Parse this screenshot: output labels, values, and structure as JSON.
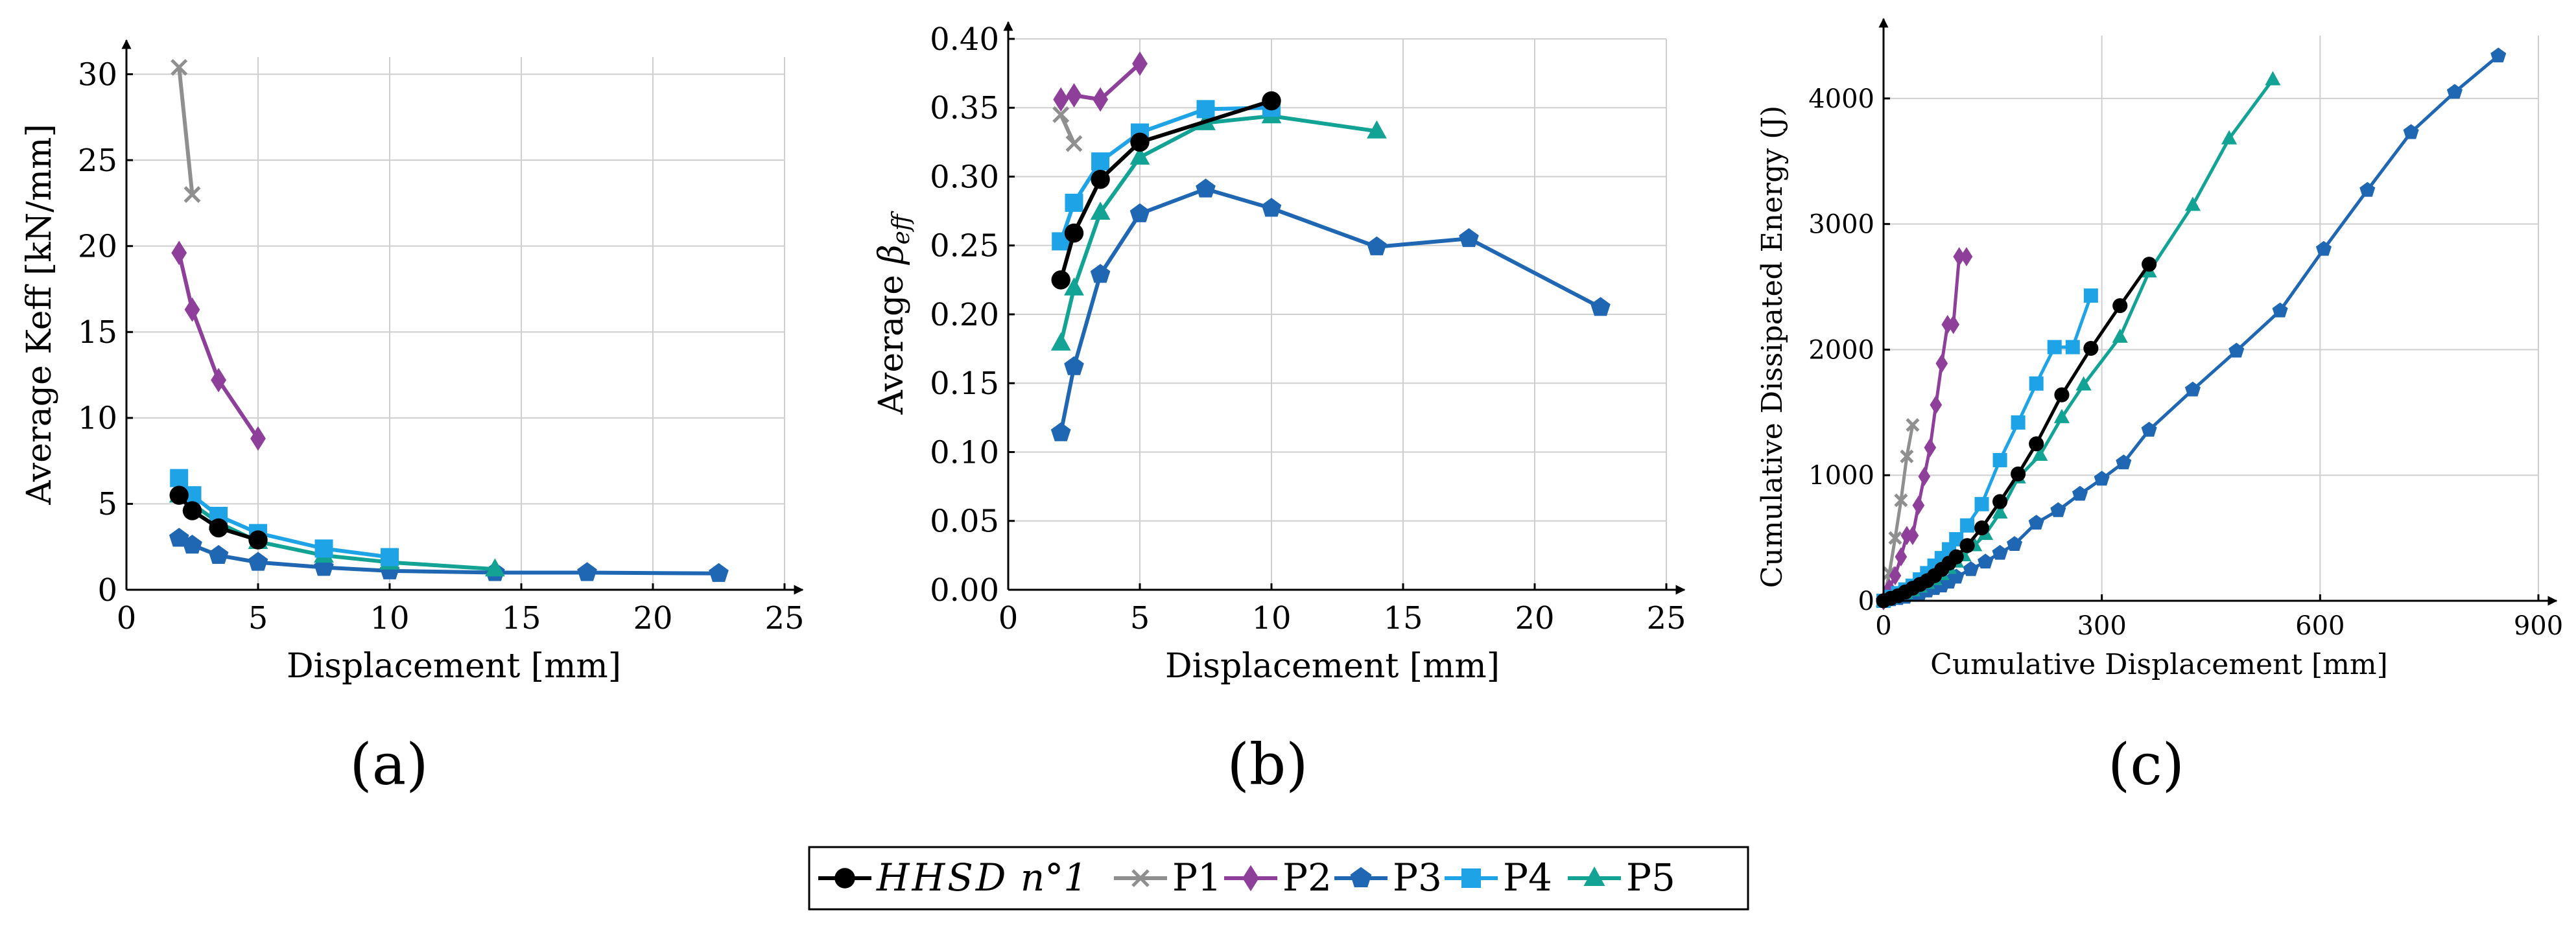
{
  "legend": {
    "entries": [
      {
        "key": "HHSD",
        "name": "HHSD n°1",
        "prefix": "HHSD",
        "suffix": "n°1"
      },
      {
        "key": "P1",
        "name": "P1"
      },
      {
        "key": "P2",
        "name": "P2"
      },
      {
        "key": "P3",
        "name": "P3"
      },
      {
        "key": "P4",
        "name": "P4"
      },
      {
        "key": "P5",
        "name": "P5"
      }
    ]
  },
  "series_styles": {
    "HHSD": {
      "color": "#000000",
      "marker": "circle"
    },
    "P1": {
      "color": "#8f8f8f",
      "marker": "cross"
    },
    "P2": {
      "color": "#8e3f9a",
      "marker": "diamond"
    },
    "P3": {
      "color": "#1f67b3",
      "marker": "pentagon"
    },
    "P4": {
      "color": "#1ea4e6",
      "marker": "square"
    },
    "P5": {
      "color": "#12a395",
      "marker": "triangle"
    }
  },
  "chart_data": [
    {
      "id": "a",
      "panel_label": "(a)",
      "type": "line",
      "title": "",
      "xlabel": "Displacement [mm]",
      "ylabel": "Average Keff [kN/mm]",
      "xlim": [
        0,
        25
      ],
      "ylim": [
        0,
        31
      ],
      "xticks": [
        0,
        5,
        10,
        15,
        20,
        25
      ],
      "yticks": [
        0,
        5,
        10,
        15,
        20,
        25,
        30
      ],
      "ytick_labels": [
        "0",
        "5",
        "10",
        "15",
        "20",
        "25",
        "30"
      ],
      "grid": true,
      "series": [
        {
          "key": "P1",
          "x": [
            2,
            2.5
          ],
          "y": [
            30.4,
            23.0
          ]
        },
        {
          "key": "P2",
          "x": [
            2,
            2.5,
            3.5,
            5
          ],
          "y": [
            19.6,
            16.3,
            12.2,
            8.8
          ]
        },
        {
          "key": "P3",
          "x": [
            2,
            2.5,
            3.5,
            5,
            7.5,
            10,
            14,
            17.5,
            22.5
          ],
          "y": [
            3.0,
            2.6,
            2.0,
            1.6,
            1.3,
            1.1,
            1.0,
            1.0,
            0.95
          ]
        },
        {
          "key": "P5",
          "x": [
            2,
            2.5,
            3.5,
            5,
            7.5,
            10,
            14
          ],
          "y": [
            5.5,
            5.0,
            3.9,
            2.8,
            2.0,
            1.6,
            1.2
          ]
        },
        {
          "key": "P4",
          "x": [
            2,
            2.5,
            3.5,
            5,
            7.5,
            10
          ],
          "y": [
            6.5,
            5.5,
            4.3,
            3.3,
            2.4,
            1.9
          ]
        },
        {
          "key": "HHSD",
          "x": [
            2,
            2.5,
            3.5,
            5
          ],
          "y": [
            5.5,
            4.6,
            3.6,
            2.9
          ]
        }
      ]
    },
    {
      "id": "b",
      "panel_label": "(b)",
      "type": "line",
      "title": "",
      "xlabel": "Displacement [mm]",
      "ylabel": "Average β_eff",
      "ylabel_main": "Average ",
      "ylabel_symbol": "β",
      "ylabel_subscript": "eff",
      "xlim": [
        0,
        25
      ],
      "ylim": [
        0,
        0.4
      ],
      "xticks": [
        0,
        5,
        10,
        15,
        20,
        25
      ],
      "yticks": [
        0,
        0.05,
        0.1,
        0.15,
        0.2,
        0.25,
        0.3,
        0.35,
        0.4
      ],
      "ytick_labels": [
        "0.00",
        "0.05",
        "0.10",
        "0.15",
        "0.20",
        "0.25",
        "0.30",
        "0.35",
        "0.40"
      ],
      "grid": true,
      "series": [
        {
          "key": "P1",
          "x": [
            2,
            2.5
          ],
          "y": [
            0.345,
            0.324
          ]
        },
        {
          "key": "P2",
          "x": [
            2,
            2.5,
            3.5,
            5
          ],
          "y": [
            0.356,
            0.359,
            0.356,
            0.382
          ]
        },
        {
          "key": "P3",
          "x": [
            2,
            2.5,
            3.5,
            5,
            7.5,
            10,
            14,
            17.5,
            22.5
          ],
          "y": [
            0.114,
            0.162,
            0.229,
            0.273,
            0.291,
            0.277,
            0.249,
            0.255,
            0.205
          ]
        },
        {
          "key": "P5",
          "x": [
            2,
            2.5,
            3.5,
            5,
            7.5,
            10,
            14
          ],
          "y": [
            0.179,
            0.219,
            0.274,
            0.314,
            0.339,
            0.344,
            0.333
          ]
        },
        {
          "key": "P4",
          "x": [
            2,
            2.5,
            3.5,
            5,
            7.5,
            10
          ],
          "y": [
            0.253,
            0.281,
            0.311,
            0.332,
            0.349,
            0.35
          ]
        },
        {
          "key": "HHSD",
          "x": [
            2,
            2.5,
            3.5,
            5,
            10
          ],
          "y": [
            0.225,
            0.259,
            0.298,
            0.325,
            0.355
          ]
        }
      ]
    },
    {
      "id": "c",
      "panel_label": "(c)",
      "type": "line",
      "title": "",
      "xlabel": "Cumulative Displacement [mm]",
      "ylabel": "Cumulative Dissipated Energy (J)",
      "xlim": [
        0,
        900
      ],
      "ylim": [
        0,
        4500
      ],
      "xticks": [
        0,
        300,
        600,
        900
      ],
      "yticks": [
        0,
        1000,
        2000,
        3000,
        4000
      ],
      "ytick_labels": [
        "0",
        "1000",
        "2000",
        "3000",
        "4000"
      ],
      "grid": true,
      "series": [
        {
          "key": "P1",
          "x": [
            0,
            8,
            16,
            24,
            32,
            40
          ],
          "y": [
            0,
            220,
            500,
            800,
            1150,
            1400
          ]
        },
        {
          "key": "P2",
          "x": [
            0,
            8,
            16,
            24,
            32,
            40,
            48,
            56,
            64,
            72,
            80,
            88,
            96,
            104,
            114
          ],
          "y": [
            0,
            100,
            200,
            350,
            520,
            520,
            760,
            990,
            1220,
            1560,
            1890,
            2200,
            2200,
            2740,
            2740
          ]
        },
        {
          "key": "P3",
          "x": [
            0,
            10,
            20,
            30,
            40,
            50,
            60,
            70,
            80,
            90,
            100,
            120,
            140,
            160,
            180,
            210,
            240,
            270,
            300,
            330,
            365,
            425,
            485,
            545,
            605,
            665,
            725,
            785,
            845
          ],
          "y": [
            0,
            10,
            20,
            30,
            45,
            60,
            80,
            100,
            120,
            150,
            190,
            250,
            310,
            380,
            450,
            620,
            720,
            850,
            970,
            1100,
            1360,
            1680,
            1990,
            2310,
            2800,
            3270,
            3730,
            4050,
            4340
          ]
        },
        {
          "key": "P5",
          "x": [
            0,
            10,
            20,
            30,
            40,
            50,
            60,
            70,
            80,
            90,
            100,
            110,
            125,
            140,
            160,
            185,
            215,
            245,
            275,
            325,
            365,
            425,
            475,
            535
          ],
          "y": [
            0,
            20,
            40,
            60,
            80,
            110,
            140,
            170,
            210,
            260,
            310,
            360,
            440,
            530,
            700,
            980,
            1160,
            1460,
            1720,
            2100,
            2620,
            3150,
            3680,
            4150
          ]
        },
        {
          "key": "P4",
          "x": [
            0,
            10,
            20,
            30,
            40,
            50,
            60,
            70,
            80,
            90,
            100,
            115,
            135,
            160,
            185,
            210,
            235,
            260,
            285
          ],
          "y": [
            0,
            30,
            60,
            90,
            120,
            170,
            220,
            280,
            340,
            410,
            490,
            600,
            770,
            1120,
            1420,
            1730,
            2020,
            2020,
            2430
          ]
        },
        {
          "key": "HHSD",
          "x": [
            0,
            10,
            20,
            30,
            40,
            50,
            60,
            70,
            80,
            90,
            100,
            115,
            135,
            160,
            185,
            210,
            245,
            285,
            325,
            365
          ],
          "y": [
            0,
            20,
            40,
            70,
            100,
            130,
            160,
            200,
            250,
            300,
            350,
            440,
            580,
            790,
            1010,
            1250,
            1640,
            2010,
            2350,
            2680
          ]
        }
      ]
    }
  ]
}
